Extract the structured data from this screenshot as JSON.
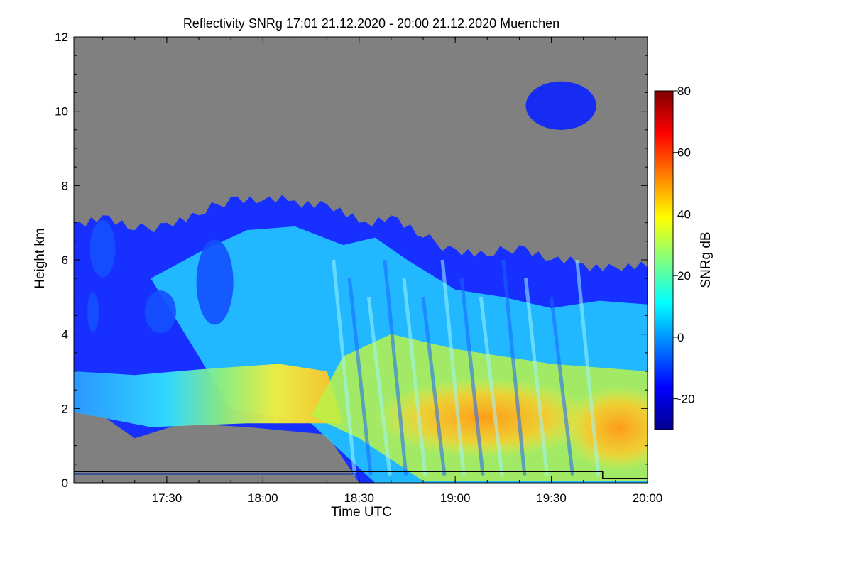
{
  "chart_data": {
    "type": "heatmap",
    "title": "Reflectivity SNRg   17:01 21.12.2020 - 20:00 21.12.2020 Muenchen",
    "xlabel": "Time UTC",
    "ylabel": "Height km",
    "xlim": [
      "17:01",
      "20:00"
    ],
    "ylim": [
      0,
      12
    ],
    "x_ticks": [
      "17:30",
      "18:00",
      "18:30",
      "19:00",
      "19:30",
      "20:00"
    ],
    "y_ticks": [
      "0",
      "2",
      "4",
      "6",
      "8",
      "10",
      "12"
    ],
    "background_color": "#808080",
    "colorbar": {
      "label": "SNRg dB",
      "range": [
        -30,
        80
      ],
      "ticks": [
        "-20",
        "0",
        "20",
        "40",
        "60",
        "80"
      ],
      "colormap": "jet"
    },
    "cloud_top_km": [
      {
        "time": "17:01",
        "height_km": 7.0
      },
      {
        "time": "17:10",
        "height_km": 7.2
      },
      {
        "time": "17:20",
        "height_km": 6.8
      },
      {
        "time": "17:30",
        "height_km": 7.0
      },
      {
        "time": "17:40",
        "height_km": 7.2
      },
      {
        "time": "17:50",
        "height_km": 7.7
      },
      {
        "time": "18:00",
        "height_km": 7.6
      },
      {
        "time": "18:10",
        "height_km": 7.6
      },
      {
        "time": "18:20",
        "height_km": 7.5
      },
      {
        "time": "18:30",
        "height_km": 7.0
      },
      {
        "time": "18:40",
        "height_km": 7.2
      },
      {
        "time": "18:50",
        "height_km": 6.6
      },
      {
        "time": "19:00",
        "height_km": 6.3
      },
      {
        "time": "19:10",
        "height_km": 6.1
      },
      {
        "time": "19:20",
        "height_km": 6.4
      },
      {
        "time": "19:30",
        "height_km": 6.0
      },
      {
        "time": "19:40",
        "height_km": 5.9
      },
      {
        "time": "19:50",
        "height_km": 5.8
      },
      {
        "time": "20:00",
        "height_km": 5.8
      }
    ],
    "upper_cloud_layer": {
      "time_range": [
        "19:22",
        "19:44"
      ],
      "height_km": [
        9.5,
        10.8
      ]
    },
    "max_snr_region": {
      "time_range": [
        "18:45",
        "20:00"
      ],
      "height_km": [
        1.0,
        2.5
      ],
      "snr_db": [
        45,
        55
      ]
    },
    "melting_line": [
      {
        "time": "17:01",
        "height_km": 0.3
      },
      {
        "time": "19:46",
        "height_km": 0.3
      },
      {
        "time": "19:46",
        "height_km": 0.12
      },
      {
        "time": "20:00",
        "height_km": 0.12
      }
    ]
  }
}
